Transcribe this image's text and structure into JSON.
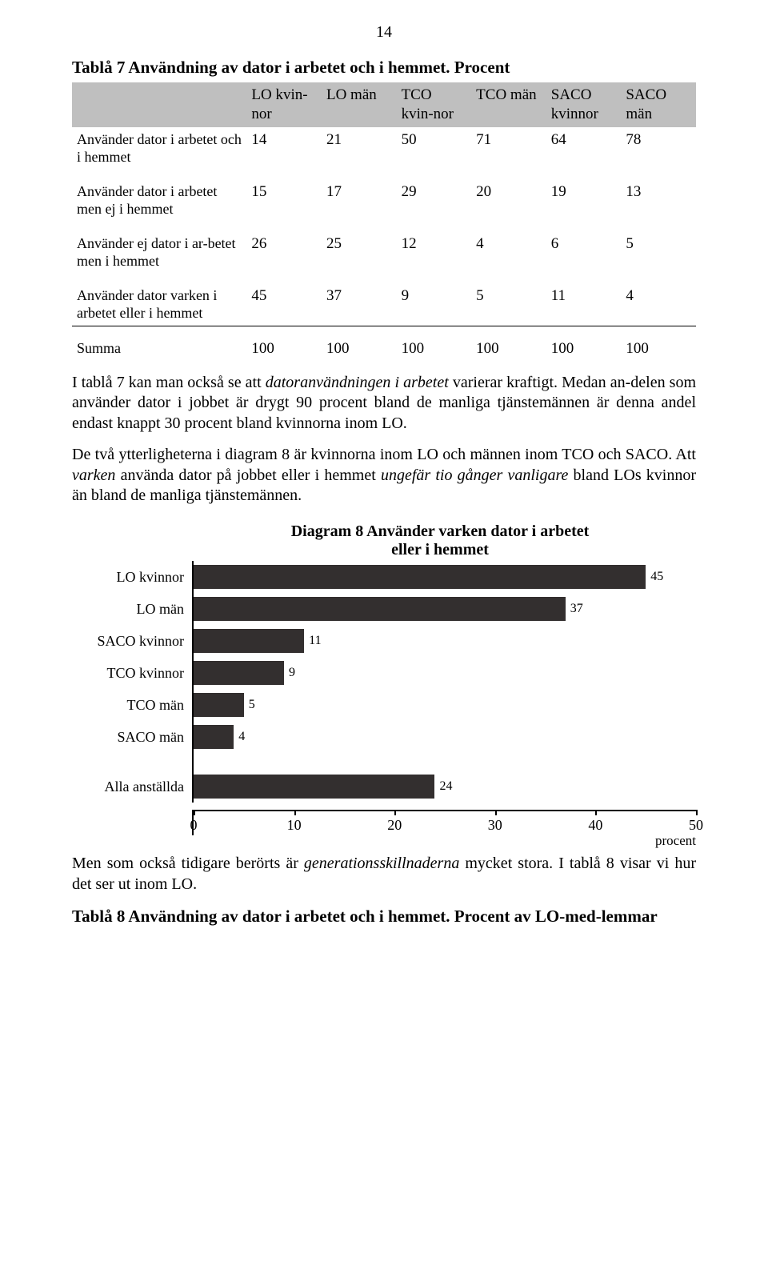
{
  "page_number": "14",
  "table": {
    "title": "Tablå 7 Användning av dator i arbetet och i hemmet. Procent",
    "columns": [
      "LO kvin-nor",
      "LO män",
      "TCO kvin-nor",
      "TCO män",
      "SACO kvinnor",
      "SACO män"
    ],
    "rows": [
      {
        "label": "Använder dator i arbetet och i hemmet",
        "values": [
          "14",
          "21",
          "50",
          "71",
          "64",
          "78"
        ]
      },
      {
        "label": "Använder dator i arbetet men ej i hemmet",
        "values": [
          "15",
          "17",
          "29",
          "20",
          "19",
          "13"
        ]
      },
      {
        "label": "Använder ej dator i ar-betet men i hemmet",
        "values": [
          "26",
          "25",
          "12",
          "4",
          "6",
          "5"
        ]
      },
      {
        "label": "Använder dator varken i arbetet eller i hemmet",
        "values": [
          "45",
          "37",
          "9",
          "5",
          "11",
          "4"
        ]
      }
    ],
    "summa": {
      "label": "Summa",
      "values": [
        "100",
        "100",
        "100",
        "100",
        "100",
        "100"
      ]
    }
  },
  "para1_a": "I tablå 7 kan man också se att ",
  "para1_b": "datoranvändningen i arbetet",
  "para1_c": " varierar kraftigt. Medan an-delen som använder dator i jobbet är drygt 90 procent bland de manliga tjänstemännen är denna andel endast knappt 30 procent bland kvinnorna inom LO.",
  "para2_a": "De två ytterligheterna i diagram 8 är kvinnorna inom LO och männen inom TCO och SACO. Att ",
  "para2_b": "varken",
  "para2_c": " använda dator på jobbet eller i hemmet ",
  "para2_d": "ungefär tio gånger vanligare",
  "para2_e": " bland LOs kvinnor än bland de manliga tjänstemännen.",
  "chart": {
    "type": "bar",
    "title_line1": "Diagram 8 Använder varken dator i arbetet",
    "title_line2": "eller i hemmet",
    "xmax": 50,
    "xtick_step": 10,
    "xticks": [
      0,
      10,
      20,
      30,
      40,
      50
    ],
    "xlabel": "procent",
    "bar_color": "#332f2f",
    "categories": [
      {
        "label": "LO kvinnor",
        "value": 45
      },
      {
        "label": "LO män",
        "value": 37
      },
      {
        "label": "SACO kvinnor",
        "value": 11
      },
      {
        "label": "TCO kvinnor",
        "value": 9
      },
      {
        "label": "TCO män",
        "value": 5
      },
      {
        "label": "SACO män",
        "value": 4
      }
    ],
    "extra": {
      "label": "Alla anställda",
      "value": 24
    }
  },
  "para3_a": "Men som också tidigare berörts är ",
  "para3_b": "generationsskillnaderna",
  "para3_c": " mycket stora. I tablå 8 visar vi hur det ser ut inom LO.",
  "table8_title": "Tablå 8 Användning av dator i arbetet och i hemmet. Procent av LO-med-lemmar"
}
